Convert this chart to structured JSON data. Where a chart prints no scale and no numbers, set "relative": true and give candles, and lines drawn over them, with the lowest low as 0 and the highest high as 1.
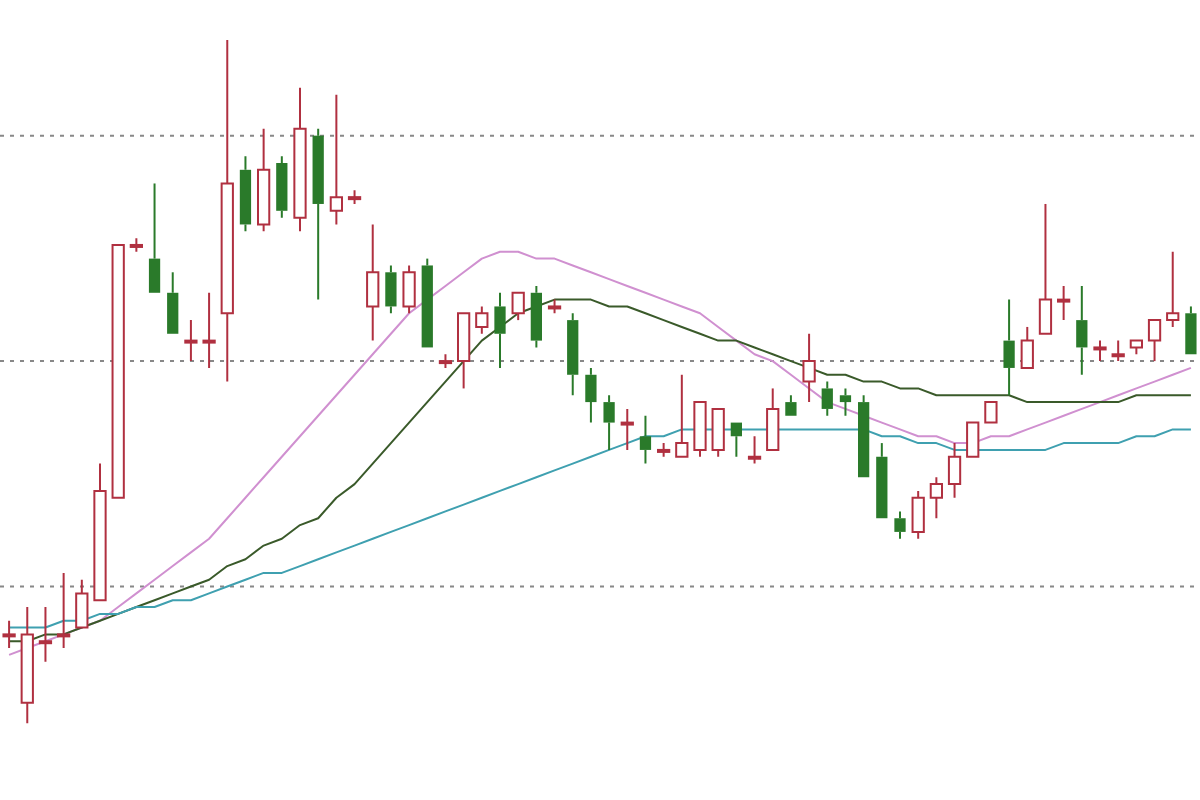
{
  "chart_data": {
    "type": "candlestick",
    "relative": true,
    "legend": false,
    "ref_lines": [
      {
        "axis": "y",
        "value": 0.86,
        "color": "#888888",
        "line_style": "dotted"
      },
      {
        "axis": "y",
        "value": 0.53,
        "color": "#888888",
        "line_style": "dotted"
      },
      {
        "axis": "y",
        "value": 0.2,
        "color": "#888888",
        "line_style": "dotted"
      }
    ],
    "marker": "none",
    "line_style": "solid",
    "categories": [
      null,
      null,
      null,
      null,
      null,
      null,
      null,
      null,
      null,
      null,
      null,
      null,
      null,
      null,
      null,
      null,
      null,
      null,
      null,
      null,
      null,
      null,
      null,
      null,
      null,
      null,
      null,
      null,
      null,
      null,
      null,
      null,
      null,
      null,
      null,
      null,
      null,
      null,
      null,
      null,
      null,
      null,
      null,
      null,
      null,
      null,
      null,
      null,
      null,
      null,
      null,
      null,
      null,
      null,
      null,
      null,
      null,
      null,
      null,
      null,
      null,
      null,
      null,
      null,
      null,
      null
    ],
    "ohlc": [
      [
        0.13,
        0.15,
        0.11,
        0.13
      ],
      [
        0.03,
        0.17,
        0,
        0.13
      ],
      [
        0.12,
        0.17,
        0.09,
        0.12
      ],
      [
        0.13,
        0.22,
        0.11,
        0.13
      ],
      [
        0.14,
        0.21,
        0.14,
        0.19
      ],
      [
        0.18,
        0.38,
        0.18,
        0.34
      ],
      [
        0.33,
        0.7,
        0.33,
        0.7
      ],
      [
        0.7,
        0.71,
        0.69,
        0.7
      ],
      [
        0.68,
        0.79,
        0.63,
        0.63
      ],
      [
        0.63,
        0.66,
        0.57,
        0.57
      ],
      [
        0.56,
        0.59,
        0.53,
        0.56
      ],
      [
        0.56,
        0.63,
        0.52,
        0.56
      ],
      [
        0.6,
        1,
        0.5,
        0.79
      ],
      [
        0.81,
        0.83,
        0.72,
        0.73
      ],
      [
        0.73,
        0.87,
        0.72,
        0.81
      ],
      [
        0.82,
        0.83,
        0.74,
        0.75
      ],
      [
        0.74,
        0.93,
        0.72,
        0.87
      ],
      [
        0.86,
        0.87,
        0.62,
        0.76
      ],
      [
        0.75,
        0.92,
        0.73,
        0.77
      ],
      [
        0.77,
        0.78,
        0.76,
        0.77
      ],
      [
        0.61,
        0.73,
        0.56,
        0.66
      ],
      [
        0.66,
        0.67,
        0.6,
        0.61
      ],
      [
        0.61,
        0.67,
        0.6,
        0.66
      ],
      [
        0.67,
        0.68,
        0.55,
        0.55
      ],
      [
        0.53,
        0.54,
        0.52,
        0.53
      ],
      [
        0.53,
        0.6,
        0.49,
        0.6
      ],
      [
        0.58,
        0.61,
        0.57,
        0.6
      ],
      [
        0.61,
        0.63,
        0.52,
        0.57
      ],
      [
        0.6,
        0.63,
        0.59,
        0.63
      ],
      [
        0.63,
        0.64,
        0.55,
        0.56
      ],
      [
        0.61,
        0.62,
        0.6,
        0.61
      ],
      [
        0.59,
        0.6,
        0.48,
        0.51
      ],
      [
        0.51,
        0.52,
        0.44,
        0.47
      ],
      [
        0.47,
        0.48,
        0.4,
        0.44
      ],
      [
        0.44,
        0.46,
        0.4,
        0.44
      ],
      [
        0.42,
        0.45,
        0.38,
        0.4
      ],
      [
        0.4,
        0.41,
        0.39,
        0.4
      ],
      [
        0.39,
        0.51,
        0.39,
        0.41
      ],
      [
        0.4,
        0.47,
        0.39,
        0.47
      ],
      [
        0.4,
        0.46,
        0.39,
        0.46
      ],
      [
        0.44,
        0.44,
        0.39,
        0.42
      ],
      [
        0.39,
        0.42,
        0.38,
        0.39
      ],
      [
        0.4,
        0.49,
        0.4,
        0.46
      ],
      [
        0.47,
        0.48,
        0.45,
        0.45
      ],
      [
        0.5,
        0.57,
        0.47,
        0.53
      ],
      [
        0.49,
        0.5,
        0.45,
        0.46
      ],
      [
        0.48,
        0.49,
        0.45,
        0.47
      ],
      [
        0.47,
        0.48,
        0.36,
        0.36
      ],
      [
        0.39,
        0.41,
        0.3,
        0.3
      ],
      [
        0.3,
        0.31,
        0.27,
        0.28
      ],
      [
        0.28,
        0.34,
        0.27,
        0.33
      ],
      [
        0.33,
        0.36,
        0.3,
        0.35
      ],
      [
        0.35,
        0.41,
        0.33,
        0.39
      ],
      [
        0.39,
        0.44,
        0.39,
        0.44
      ],
      [
        0.44,
        0.47,
        0.44,
        0.47
      ],
      [
        0.56,
        0.62,
        0.48,
        0.52
      ],
      [
        0.52,
        0.58,
        0.52,
        0.56
      ],
      [
        0.57,
        0.76,
        0.57,
        0.62
      ],
      [
        0.62,
        0.64,
        0.59,
        0.62
      ],
      [
        0.59,
        0.64,
        0.51,
        0.55
      ],
      [
        0.55,
        0.56,
        0.53,
        0.55
      ],
      [
        0.54,
        0.56,
        0.53,
        0.54
      ],
      [
        0.55,
        0.56,
        0.54,
        0.56
      ],
      [
        0.56,
        0.59,
        0.53,
        0.59
      ],
      [
        0.59,
        0.69,
        0.58,
        0.6
      ],
      [
        0.6,
        0.61,
        0.54,
        0.54
      ]
    ],
    "series": [
      {
        "type": "line",
        "color": "#3fa0b0",
        "values": [
          0.14,
          0.14,
          0.14,
          0.15,
          0.15,
          0.16,
          0.16,
          0.17,
          0.17,
          0.18,
          0.18,
          0.19,
          0.2,
          0.21,
          0.22,
          0.22,
          0.23,
          0.24,
          0.25,
          0.26,
          0.27,
          0.28,
          0.29,
          0.3,
          0.31,
          0.32,
          0.33,
          0.34,
          0.35,
          0.36,
          0.37,
          0.38,
          0.39,
          0.4,
          0.41,
          0.42,
          0.42,
          0.43,
          0.43,
          0.43,
          0.43,
          0.43,
          0.43,
          0.43,
          0.43,
          0.43,
          0.43,
          0.43,
          0.42,
          0.42,
          0.41,
          0.41,
          0.4,
          0.4,
          0.4,
          0.4,
          0.4,
          0.4,
          0.41,
          0.41,
          0.41,
          0.41,
          0.42,
          0.42,
          0.43,
          0.43
        ]
      },
      {
        "type": "line",
        "color": "#3a5a2a",
        "values": [
          0.12,
          0.12,
          0.13,
          0.13,
          0.14,
          0.15,
          0.16,
          0.17,
          0.18,
          0.19,
          0.2,
          0.21,
          0.23,
          0.24,
          0.26,
          0.27,
          0.29,
          0.3,
          0.33,
          0.35,
          0.38,
          0.41,
          0.44,
          0.47,
          0.5,
          0.53,
          0.56,
          0.58,
          0.6,
          0.61,
          0.62,
          0.62,
          0.62,
          0.61,
          0.61,
          0.6,
          0.59,
          0.58,
          0.57,
          0.56,
          0.56,
          0.55,
          0.54,
          0.53,
          0.52,
          0.51,
          0.51,
          0.5,
          0.5,
          0.49,
          0.49,
          0.48,
          0.48,
          0.48,
          0.48,
          0.48,
          0.47,
          0.47,
          0.47,
          0.47,
          0.47,
          0.47,
          0.48,
          0.48,
          0.48,
          0.48
        ]
      },
      {
        "type": "line",
        "color": "#d090d0",
        "values": [
          0.1,
          0.11,
          0.12,
          0.13,
          0.14,
          0.15,
          0.17,
          0.19,
          0.21,
          0.23,
          0.25,
          0.27,
          0.3,
          0.33,
          0.36,
          0.39,
          0.42,
          0.45,
          0.48,
          0.51,
          0.54,
          0.57,
          0.6,
          0.62,
          0.64,
          0.66,
          0.68,
          0.69,
          0.69,
          0.68,
          0.68,
          0.67,
          0.66,
          0.65,
          0.64,
          0.63,
          0.62,
          0.61,
          0.6,
          0.58,
          0.56,
          0.54,
          0.53,
          0.51,
          0.49,
          0.47,
          0.46,
          0.45,
          0.44,
          0.43,
          0.42,
          0.42,
          0.41,
          0.41,
          0.42,
          0.42,
          0.43,
          0.44,
          0.45,
          0.46,
          0.47,
          0.48,
          0.49,
          0.5,
          0.51,
          0.52
        ]
      }
    ]
  }
}
